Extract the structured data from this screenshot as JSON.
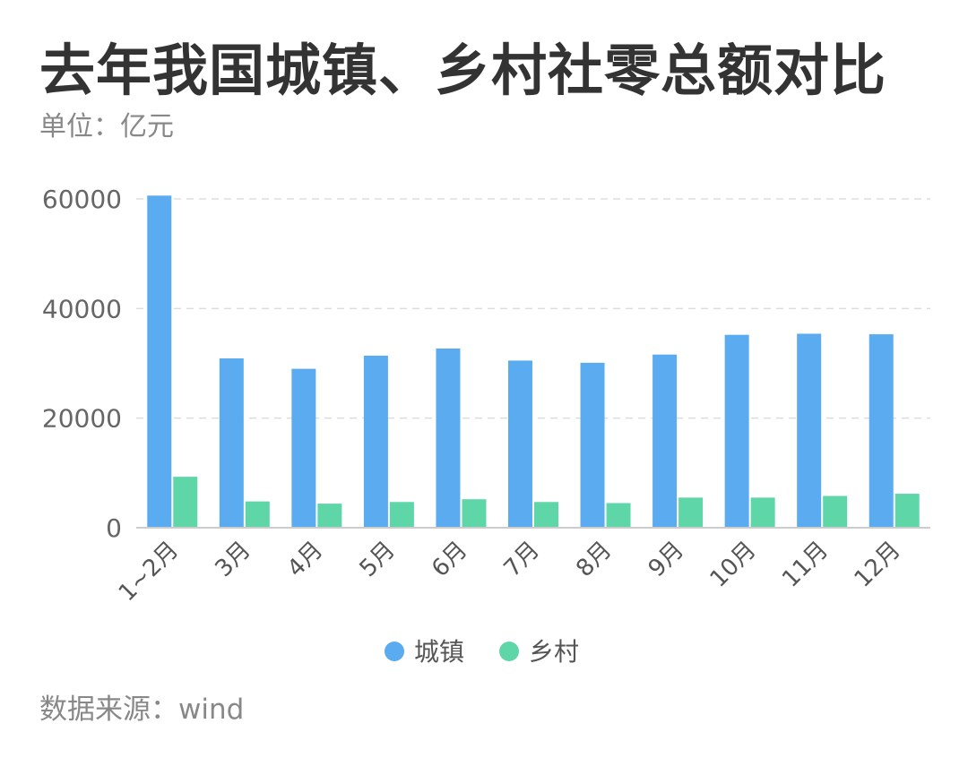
{
  "chart_data": {
    "type": "bar",
    "title": "去年我国城镇、乡村社零总额对比",
    "unit_label": "单位：亿元",
    "source_label": "数据来源：wind",
    "categories": [
      "1~2月",
      "3月",
      "4月",
      "5月",
      "6月",
      "7月",
      "8月",
      "9月",
      "10月",
      "11月",
      "12月"
    ],
    "series": [
      {
        "name": "城镇",
        "color": "#5aabf0",
        "values": [
          60600,
          30900,
          29000,
          31400,
          32700,
          30500,
          30100,
          31600,
          35200,
          35400,
          35300
        ]
      },
      {
        "name": "乡村",
        "color": "#5fd6a8",
        "values": [
          9300,
          4800,
          4400,
          4700,
          5200,
          4700,
          4500,
          5500,
          5500,
          5800,
          6200
        ]
      }
    ],
    "yticks": [
      0,
      20000,
      40000,
      60000
    ],
    "ylim": [
      0,
      60000
    ],
    "grid": true,
    "legend_position": "bottom-center"
  }
}
